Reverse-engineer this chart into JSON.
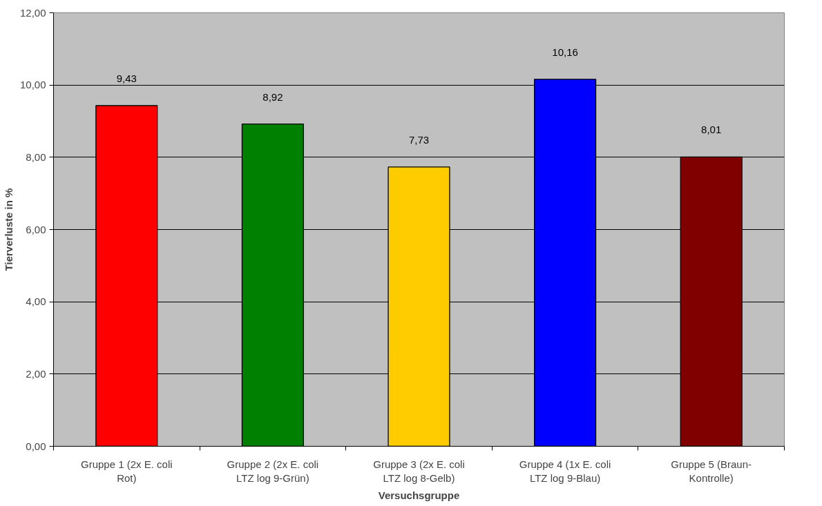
{
  "chart_data": {
    "type": "bar",
    "xlabel": "Versuchsgruppe",
    "ylabel": "Tierverluste in %",
    "categories": [
      "Gruppe 1 (2x E. coli\nRot)",
      "Gruppe 2 (2x E. coli\nLTZ log 9-Grün)",
      "Gruppe 3 (2x E. coli\nLTZ log 8-Gelb)",
      "Gruppe 4 (1x E. coli\nLTZ log 9-Blau)",
      "Gruppe 5 (Braun-\nKontrolle)"
    ],
    "values": [
      9.43,
      8.92,
      7.73,
      10.16,
      8.01
    ],
    "colors": [
      "#ff0000",
      "#008000",
      "#ffcc00",
      "#0000ff",
      "#800000"
    ],
    "value_labels": [
      "9,43",
      "8,92",
      "7,73",
      "10,16",
      "8,01"
    ],
    "ylim": [
      0,
      12
    ],
    "yticks": [
      {
        "value": 0,
        "label": "0,00"
      },
      {
        "value": 2,
        "label": "2,00"
      },
      {
        "value": 4,
        "label": "4,00"
      },
      {
        "value": 6,
        "label": "6,00"
      },
      {
        "value": 8,
        "label": "8,00"
      },
      {
        "value": 10,
        "label": "10,00"
      },
      {
        "value": 12,
        "label": "12,00"
      }
    ],
    "grid": "y"
  }
}
